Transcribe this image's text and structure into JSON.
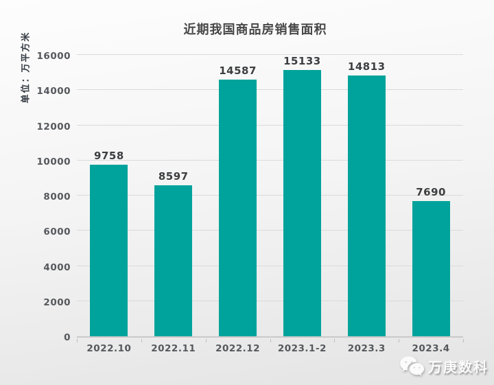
{
  "chart_data": {
    "type": "bar",
    "title": "近期我国商品房销售面积",
    "ylabel": "单位：万平方米",
    "xlabel": "",
    "categories": [
      "2022.10",
      "2022.11",
      "2022.12",
      "2023.1-2",
      "2023.3",
      "2023.4"
    ],
    "values": [
      9758,
      8597,
      14587,
      15133,
      14813,
      7690
    ],
    "value_labels": [
      "9758",
      "8597",
      "14587",
      "15133",
      "14813",
      "7690"
    ],
    "ylim": [
      0,
      16000
    ],
    "yticks": [
      0,
      2000,
      4000,
      6000,
      8000,
      10000,
      12000,
      14000,
      16000
    ],
    "grid": true,
    "legend_position": "none",
    "bar_color": "#00a39b"
  },
  "watermark": {
    "text": "万庚数科",
    "icon": "wechat-icon"
  },
  "colors": {
    "bar": "#00a39b",
    "title_text": "#474747",
    "axis_text": "#55585c",
    "value_text": "#3c3e40",
    "gridline": "#dadada",
    "background_top": "#fdfdfd",
    "background_bottom": "#e4e4e4"
  }
}
